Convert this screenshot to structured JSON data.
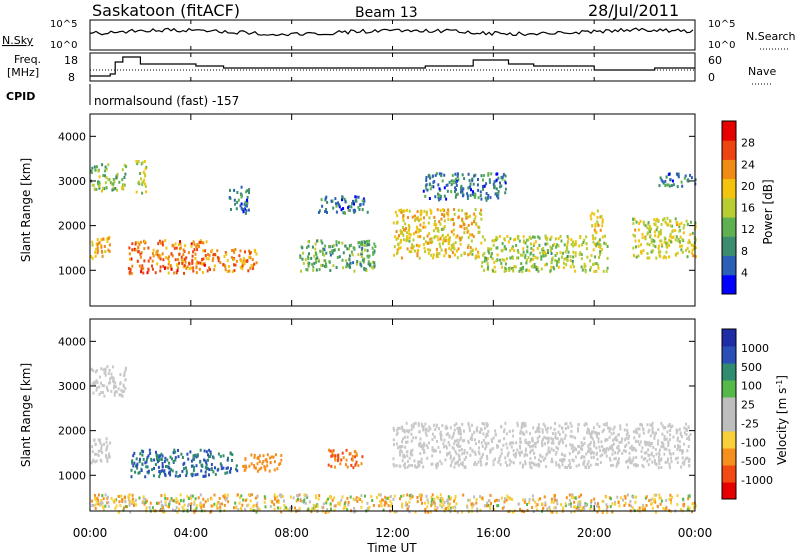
{
  "header": {
    "station": "Saskatoon (fitACF)",
    "beam": "Beam 13",
    "date": "28/Jul/2011"
  },
  "top_panels": {
    "nsky_label": "N.Sky",
    "nsky_ticks": [
      "10^5",
      "10^0"
    ],
    "nsearch_label": "N.Search",
    "nsearch_ticks": [
      "10^5",
      "10^0"
    ],
    "freq_label_1": "Freq.",
    "freq_label_2": "[MHz]",
    "freq_ticks": [
      "18",
      "8"
    ],
    "nave_label": "Nave",
    "nave_ticks": [
      "60",
      "0"
    ],
    "cpid_label": "CPID",
    "cpid_text": "normalsound (fast) -157"
  },
  "colors": {
    "power": [
      "#0000ff",
      "#2b5fb8",
      "#3c8c6e",
      "#5fb050",
      "#b8cc33",
      "#f2c40f",
      "#f08c14",
      "#ee4412",
      "#e60000"
    ],
    "velocity": [
      "#e60000",
      "#f24a12",
      "#f5901e",
      "#f7d03a",
      "#bebebe",
      "#bebebe",
      "#55b848",
      "#2f8c6e",
      "#2a50b8",
      "#1e2da6"
    ],
    "ground_scatter": "#c8c8c8"
  },
  "chart_data": [
    {
      "type": "heatmap",
      "panel": "power",
      "ylabel": "Slant Range [km]",
      "yticks": [
        "1000",
        "2000",
        "3000",
        "4000"
      ],
      "ylim": [
        200,
        4500
      ],
      "colorbar_label": "Power [dB]",
      "colorbar_ticks": [
        "4",
        "8",
        "12",
        "16",
        "20",
        "24",
        "28"
      ],
      "colorbar_range": [
        0,
        30
      ],
      "x_unit": "hours UT",
      "xlim": [
        0,
        24
      ],
      "echo_regions": [
        {
          "t_start": 0.0,
          "t_end": 0.8,
          "r_start": 1300,
          "r_end": 1800,
          "level": 20
        },
        {
          "t_start": 0.0,
          "t_end": 1.4,
          "r_start": 2800,
          "r_end": 3400,
          "level": 12
        },
        {
          "t_start": 1.5,
          "t_end": 4.6,
          "r_start": 950,
          "r_end": 1700,
          "level": 24
        },
        {
          "t_start": 1.8,
          "t_end": 2.2,
          "r_start": 2700,
          "r_end": 3500,
          "level": 16
        },
        {
          "t_start": 4.6,
          "t_end": 6.6,
          "r_start": 1000,
          "r_end": 1500,
          "level": 22
        },
        {
          "t_start": 5.5,
          "t_end": 6.3,
          "r_start": 2300,
          "r_end": 2900,
          "level": 6
        },
        {
          "t_start": 8.3,
          "t_end": 11.3,
          "r_start": 1000,
          "r_end": 1700,
          "level": 10
        },
        {
          "t_start": 9.0,
          "t_end": 11.0,
          "r_start": 2300,
          "r_end": 2700,
          "level": 6
        },
        {
          "t_start": 12.0,
          "t_end": 15.5,
          "r_start": 1300,
          "r_end": 2400,
          "level": 18
        },
        {
          "t_start": 13.2,
          "t_end": 16.5,
          "r_start": 2600,
          "r_end": 3200,
          "level": 6
        },
        {
          "t_start": 15.5,
          "t_end": 20.5,
          "r_start": 1000,
          "r_end": 1800,
          "level": 14
        },
        {
          "t_start": 19.8,
          "t_end": 20.3,
          "r_start": 1800,
          "r_end": 2400,
          "level": 18
        },
        {
          "t_start": 21.5,
          "t_end": 24.0,
          "r_start": 1300,
          "r_end": 2200,
          "level": 16
        },
        {
          "t_start": 22.5,
          "t_end": 24.0,
          "r_start": 2900,
          "r_end": 3200,
          "level": 6
        }
      ]
    },
    {
      "type": "heatmap",
      "panel": "velocity",
      "ylabel": "Slant Range [km]",
      "yticks": [
        "1000",
        "2000",
        "3000",
        "4000"
      ],
      "ylim": [
        200,
        4500
      ],
      "colorbar_label": "Velocity [m s^-1]",
      "colorbar_ticks": [
        "1000",
        "500",
        "100",
        "25",
        "-25",
        "-100",
        "-500",
        "-1000"
      ],
      "x_unit": "hours UT",
      "xlim": [
        0,
        24
      ],
      "echo_regions": [
        {
          "t_start": 0.0,
          "t_end": 0.8,
          "r_start": 1300,
          "r_end": 1900,
          "kind": "ground"
        },
        {
          "t_start": 0.0,
          "t_end": 1.4,
          "r_start": 2800,
          "r_end": 3500,
          "kind": "ground"
        },
        {
          "t_start": 1.6,
          "t_end": 5.8,
          "r_start": 1000,
          "r_end": 1600,
          "velocity": 500
        },
        {
          "t_start": 6.0,
          "t_end": 7.6,
          "r_start": 1100,
          "r_end": 1500,
          "velocity": -300
        },
        {
          "t_start": 9.4,
          "t_end": 10.8,
          "r_start": 1200,
          "r_end": 1600,
          "velocity": -500
        },
        {
          "t_start": 12.0,
          "t_end": 23.8,
          "r_start": 1200,
          "r_end": 2200,
          "kind": "ground"
        },
        {
          "t_start": 0.0,
          "t_end": 24.0,
          "r_start": 200,
          "r_end": 600,
          "velocity": -50
        }
      ]
    }
  ],
  "x_axis": {
    "label": "Time UT",
    "ticks": [
      "00:00",
      "04:00",
      "08:00",
      "12:00",
      "16:00",
      "20:00",
      "00:00"
    ]
  }
}
